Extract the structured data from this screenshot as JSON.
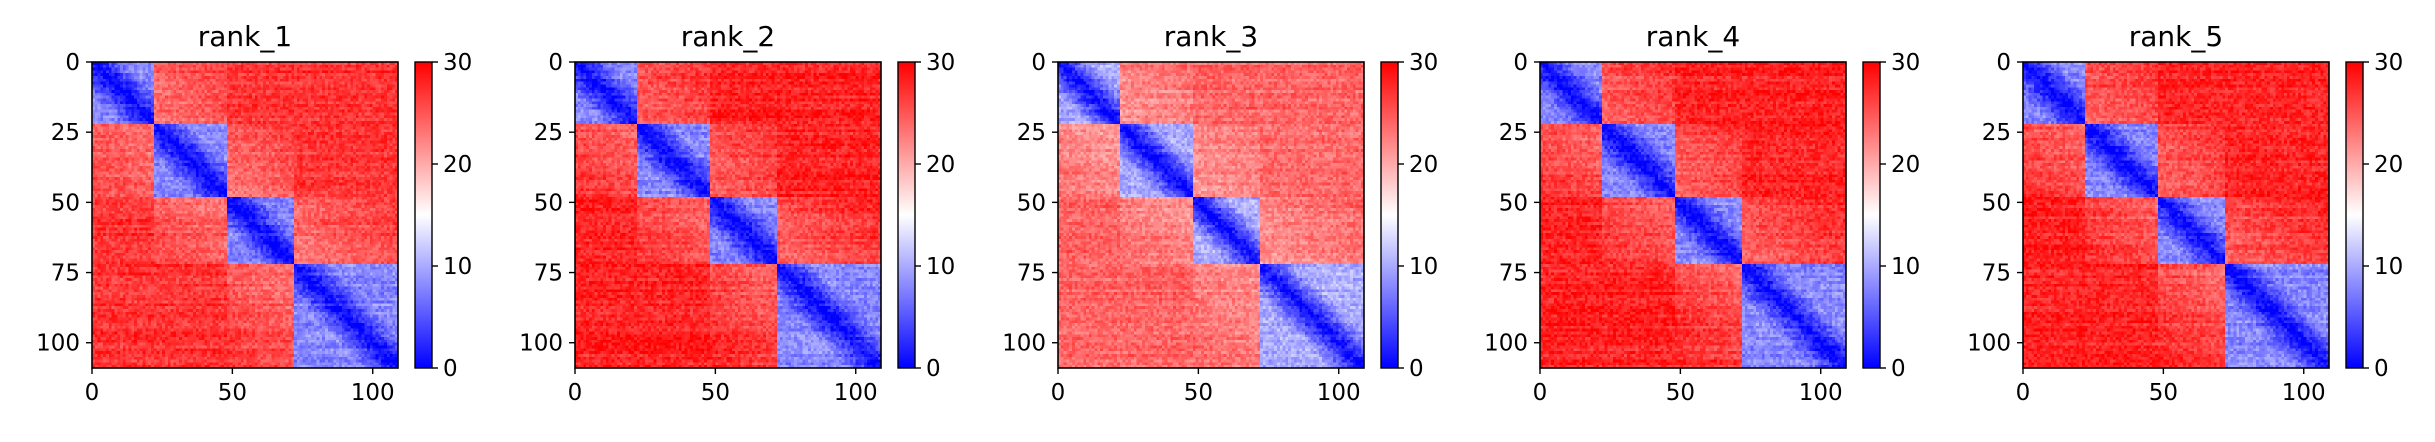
{
  "colors": {
    "low": "#0000ff",
    "mid": "#ffffff",
    "high": "#ff0000",
    "axis": "#000000"
  },
  "chart_data": [
    {
      "type": "heatmap",
      "title": "rank_1",
      "xlim": [
        0,
        109
      ],
      "ylim": [
        109,
        0
      ],
      "xticks": [
        0,
        50,
        100
      ],
      "xtick_labels": [
        "0",
        "50",
        "100"
      ],
      "yticks": [
        0,
        25,
        50,
        75,
        100
      ],
      "ytick_labels": [
        "0",
        "25",
        "50",
        "75",
        "100"
      ],
      "colorbar": {
        "range": [
          0,
          30
        ],
        "ticks": [
          0,
          10,
          20,
          30
        ],
        "tick_labels": [
          "0",
          "10",
          "20",
          "30"
        ]
      },
      "domains": [
        [
          0,
          22
        ],
        [
          22,
          48
        ],
        [
          48,
          72
        ],
        [
          72,
          109
        ]
      ],
      "value_scale": {
        "diagonal": 0,
        "within_domain": 8,
        "between_domain": 27
      }
    },
    {
      "type": "heatmap",
      "title": "rank_2",
      "xlim": [
        0,
        109
      ],
      "ylim": [
        109,
        0
      ],
      "xticks": [
        0,
        50,
        100
      ],
      "xtick_labels": [
        "0",
        "50",
        "100"
      ],
      "yticks": [
        0,
        25,
        50,
        75,
        100
      ],
      "ytick_labels": [
        "0",
        "25",
        "50",
        "75",
        "100"
      ],
      "colorbar": {
        "range": [
          0,
          30
        ],
        "ticks": [
          0,
          10,
          20,
          30
        ],
        "tick_labels": [
          "0",
          "10",
          "20",
          "30"
        ]
      },
      "domains": [
        [
          0,
          22
        ],
        [
          22,
          48
        ],
        [
          48,
          72
        ],
        [
          72,
          109
        ]
      ],
      "value_scale": {
        "diagonal": 0,
        "within_domain": 8,
        "between_domain": 28
      }
    },
    {
      "type": "heatmap",
      "title": "rank_3",
      "xlim": [
        0,
        109
      ],
      "ylim": [
        109,
        0
      ],
      "xticks": [
        0,
        50,
        100
      ],
      "xtick_labels": [
        "0",
        "50",
        "100"
      ],
      "yticks": [
        0,
        25,
        50,
        75,
        100
      ],
      "ytick_labels": [
        "0",
        "25",
        "50",
        "75",
        "100"
      ],
      "colorbar": {
        "range": [
          0,
          30
        ],
        "ticks": [
          0,
          10,
          20,
          30
        ],
        "tick_labels": [
          "0",
          "10",
          "20",
          "30"
        ]
      },
      "domains": [
        [
          0,
          22
        ],
        [
          22,
          48
        ],
        [
          48,
          72
        ],
        [
          72,
          109
        ]
      ],
      "value_scale": {
        "diagonal": 0,
        "within_domain": 10,
        "between_domain": 24
      }
    },
    {
      "type": "heatmap",
      "title": "rank_4",
      "xlim": [
        0,
        109
      ],
      "ylim": [
        109,
        0
      ],
      "xticks": [
        0,
        50,
        100
      ],
      "xtick_labels": [
        "0",
        "50",
        "100"
      ],
      "yticks": [
        0,
        25,
        50,
        75,
        100
      ],
      "ytick_labels": [
        "0",
        "25",
        "50",
        "75",
        "100"
      ],
      "colorbar": {
        "range": [
          0,
          30
        ],
        "ticks": [
          0,
          10,
          20,
          30
        ],
        "tick_labels": [
          "0",
          "10",
          "20",
          "30"
        ]
      },
      "domains": [
        [
          0,
          22
        ],
        [
          22,
          48
        ],
        [
          48,
          72
        ],
        [
          72,
          109
        ]
      ],
      "value_scale": {
        "diagonal": 0,
        "within_domain": 8,
        "between_domain": 28
      }
    },
    {
      "type": "heatmap",
      "title": "rank_5",
      "xlim": [
        0,
        109
      ],
      "ylim": [
        109,
        0
      ],
      "xticks": [
        0,
        50,
        100
      ],
      "xtick_labels": [
        "0",
        "50",
        "100"
      ],
      "yticks": [
        0,
        25,
        50,
        75,
        100
      ],
      "ytick_labels": [
        "0",
        "25",
        "50",
        "75",
        "100"
      ],
      "colorbar": {
        "range": [
          0,
          30
        ],
        "ticks": [
          0,
          10,
          20,
          30
        ],
        "tick_labels": [
          "0",
          "10",
          "20",
          "30"
        ]
      },
      "domains": [
        [
          0,
          22
        ],
        [
          22,
          48
        ],
        [
          48,
          72
        ],
        [
          72,
          109
        ]
      ],
      "value_scale": {
        "diagonal": 0,
        "within_domain": 8,
        "between_domain": 28
      }
    }
  ]
}
